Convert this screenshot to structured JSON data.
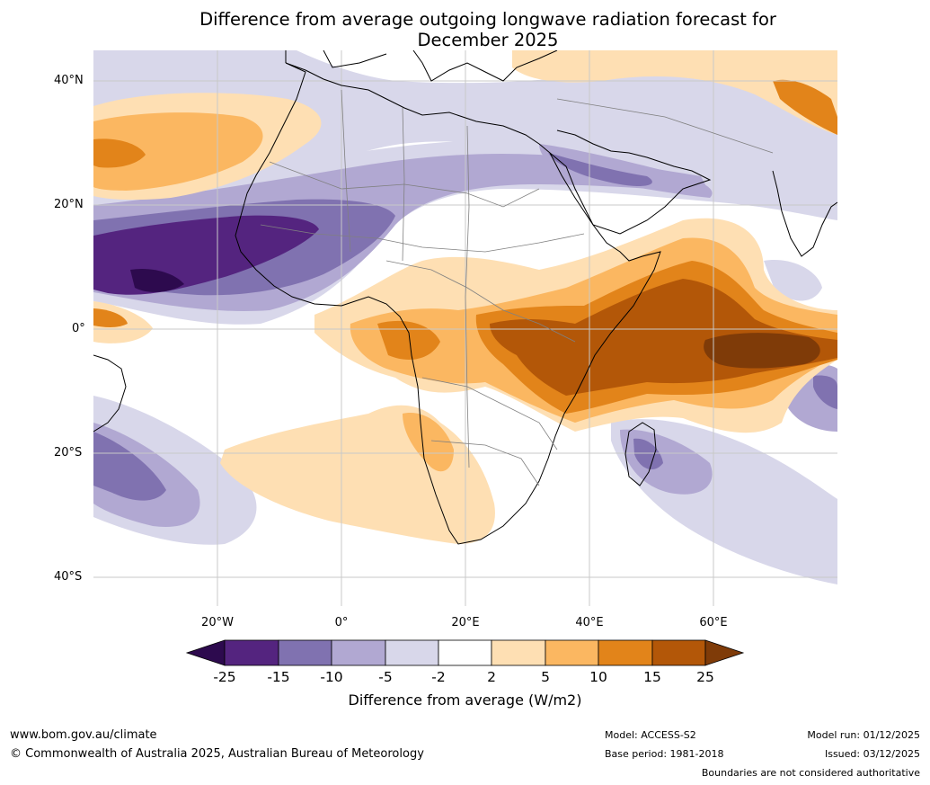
{
  "title": {
    "line1": "Difference from average outgoing longwave radiation forecast for",
    "line2": "December 2025"
  },
  "axes": {
    "lat_labels": [
      "40°N",
      "20°N",
      "0°",
      "20°S",
      "40°S"
    ],
    "lon_labels": [
      "20°W",
      "0°",
      "20°E",
      "40°E",
      "60°E"
    ]
  },
  "colorbar": {
    "title": "Difference from average (W/m2)",
    "ticks": [
      "-25",
      "-15",
      "-10",
      "-5",
      "-2",
      "2",
      "5",
      "10",
      "15",
      "25"
    ],
    "colors": {
      "lt_minus25": "#2d0a4e",
      "m25_m15": "#54247f",
      "m15_m10": "#8072b0",
      "m10_m5": "#b1a8d2",
      "m5_m2": "#d8d7ea",
      "m2_p2": "#ffffff",
      "p2_p5": "#fedfb3",
      "p5_p10": "#fbb761",
      "p10_p15": "#e2841a",
      "p15_p25": "#b35708",
      "gt_25": "#7f3b08"
    }
  },
  "footer": {
    "website": "www.bom.gov.au/climate",
    "copyright": "© Commonwealth of Australia 2025, Australian Bureau of Meteorology",
    "model": "Model: ACCESS-S2",
    "base_period": "Base period: 1981-2018",
    "model_run": "Model run: 01/12/2025",
    "issued": "Issued: 03/12/2025",
    "disclaimer": "Boundaries are not considered authoritative"
  }
}
